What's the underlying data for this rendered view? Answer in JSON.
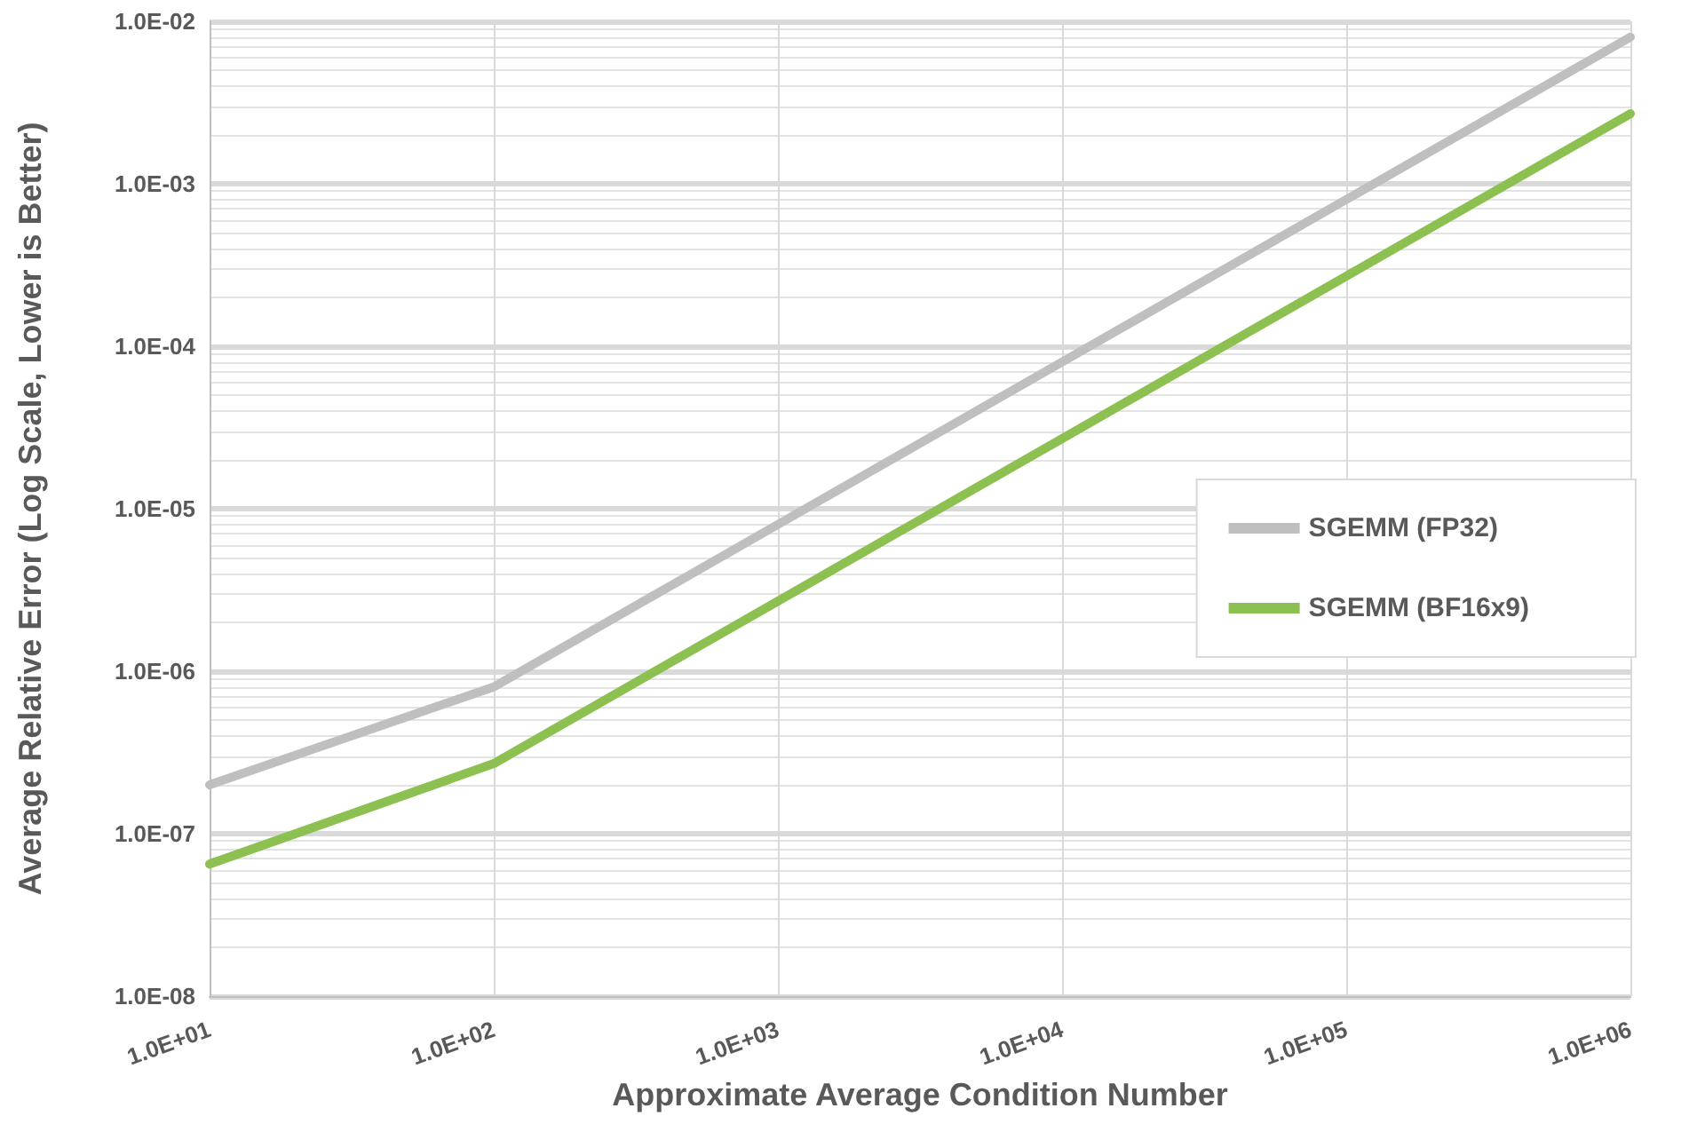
{
  "chart_data": {
    "type": "line",
    "xlabel": "Approximate Average Condition Number",
    "ylabel": "Average Relative Error (Log Scale, Lower is Better)",
    "log": "xy",
    "grid": true,
    "legend": "right",
    "marker": "none",
    "line_style": "solid",
    "x": [
      10,
      100,
      1000,
      10000,
      100000,
      1000000
    ],
    "xlim": [
      10,
      1000000
    ],
    "xticks": [
      {
        "value": 10,
        "label": "1.0E+01"
      },
      {
        "value": 100,
        "label": "1.0E+02"
      },
      {
        "value": 1000,
        "label": "1.0E+03"
      },
      {
        "value": 10000,
        "label": "1.0E+04"
      },
      {
        "value": 100000,
        "label": "1.0E+05"
      },
      {
        "value": 1000000,
        "label": "1.0E+06"
      }
    ],
    "ylim": [
      1e-08,
      0.01
    ],
    "yticks": [
      {
        "value": 1e-08,
        "label": "1.0E-08"
      },
      {
        "value": 1e-07,
        "label": "1.0E-07"
      },
      {
        "value": 1e-06,
        "label": "1.0E-06"
      },
      {
        "value": 1e-05,
        "label": "1.0E-05"
      },
      {
        "value": 0.0001,
        "label": "1.0E-04"
      },
      {
        "value": 0.001,
        "label": "1.0E-03"
      },
      {
        "value": 0.01,
        "label": "1.0E-02"
      }
    ],
    "series": [
      {
        "name": "SGEMM (FP32)",
        "color": "#bfbfbf",
        "values": [
          2e-07,
          8e-07,
          8e-06,
          8e-05,
          0.0008,
          0.008
        ]
      },
      {
        "name": "SGEMM (BF16x9)",
        "color": "#8cc152",
        "values": [
          6.5e-08,
          2.7e-07,
          2.7e-06,
          2.7e-05,
          0.00027,
          0.0027
        ]
      }
    ]
  }
}
